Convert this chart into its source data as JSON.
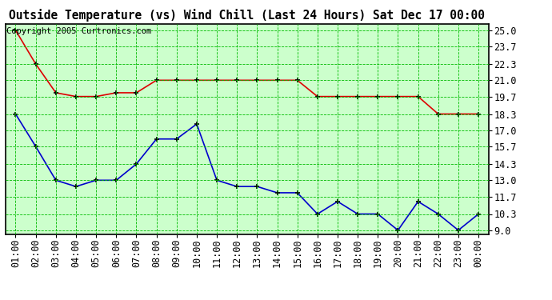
{
  "title": "Outside Temperature (vs) Wind Chill (Last 24 Hours) Sat Dec 17 00:00",
  "copyright": "Copyright 2005 Curtronics.com",
  "x_labels": [
    "01:00",
    "02:00",
    "03:00",
    "04:00",
    "05:00",
    "06:00",
    "07:00",
    "08:00",
    "09:00",
    "10:00",
    "11:00",
    "12:00",
    "13:00",
    "14:00",
    "15:00",
    "16:00",
    "17:00",
    "18:00",
    "19:00",
    "20:00",
    "21:00",
    "22:00",
    "23:00",
    "00:00"
  ],
  "red_data": [
    25.0,
    22.3,
    20.0,
    19.7,
    19.7,
    20.0,
    20.0,
    21.0,
    21.0,
    21.0,
    21.0,
    21.0,
    21.0,
    21.0,
    21.0,
    19.7,
    19.7,
    19.7,
    19.7,
    19.7,
    19.7,
    18.3,
    18.3,
    18.3
  ],
  "blue_data": [
    18.3,
    15.7,
    13.0,
    12.5,
    13.0,
    13.0,
    14.3,
    16.3,
    16.3,
    17.5,
    13.0,
    12.5,
    12.5,
    12.0,
    12.0,
    10.3,
    11.3,
    10.3,
    10.3,
    9.0,
    11.3,
    10.3,
    9.0,
    10.3
  ],
  "y_ticks": [
    9.0,
    10.3,
    11.7,
    13.0,
    14.3,
    15.7,
    17.0,
    18.3,
    19.7,
    21.0,
    22.3,
    23.7,
    25.0
  ],
  "ylim": [
    8.7,
    25.5
  ],
  "bg_color": "#ccffcc",
  "grid_color": "#00bb00",
  "title_color": "#000000",
  "red_color": "#dd0000",
  "blue_color": "#0000cc",
  "title_fontsize": 10.5,
  "tick_fontsize": 8.5,
  "copyright_fontsize": 7.5
}
